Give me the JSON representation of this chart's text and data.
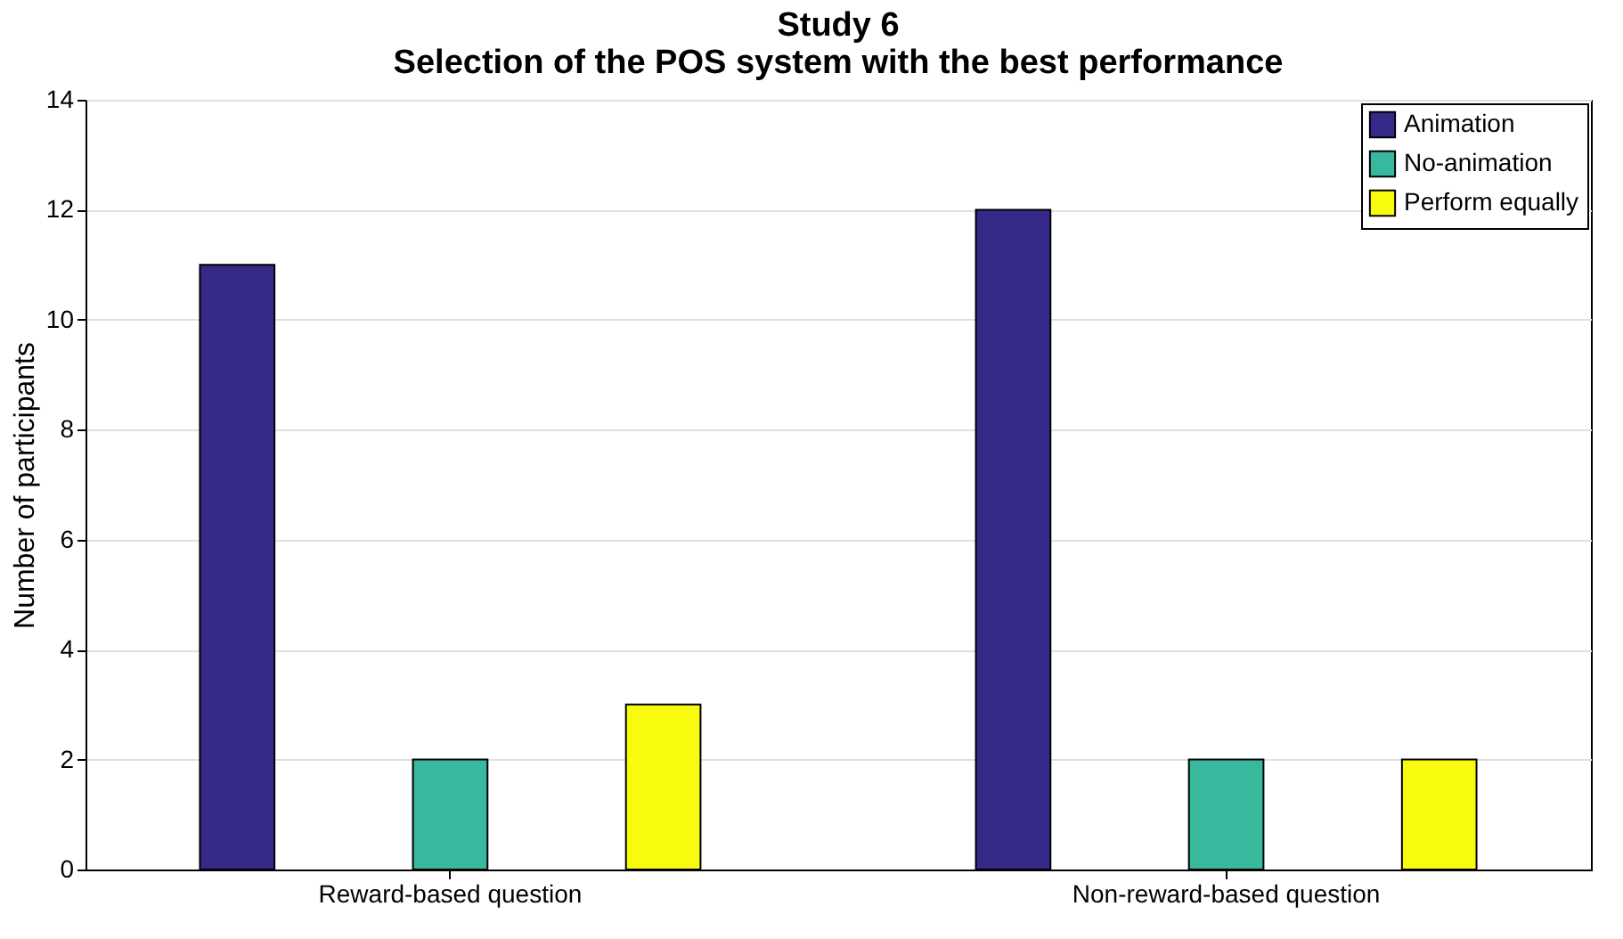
{
  "chart_data": {
    "type": "bar",
    "title": "Study 6",
    "subtitle": "Selection of the POS system with the best performance",
    "ylabel": "Number of participants",
    "categories": [
      "Reward-based question",
      "Non-reward-based question"
    ],
    "series": [
      {
        "name": "Animation",
        "color": "#352a87",
        "values": [
          11,
          12
        ]
      },
      {
        "name": "No-animation",
        "color": "#38b99e",
        "values": [
          2,
          2
        ]
      },
      {
        "name": "Perform equally",
        "color": "#f9fb0e",
        "values": [
          3,
          2
        ]
      }
    ],
    "ylim": [
      0,
      14
    ],
    "yticks": [
      0,
      2,
      4,
      6,
      8,
      10,
      12,
      14
    ],
    "grid": "y",
    "legend": "top right"
  }
}
